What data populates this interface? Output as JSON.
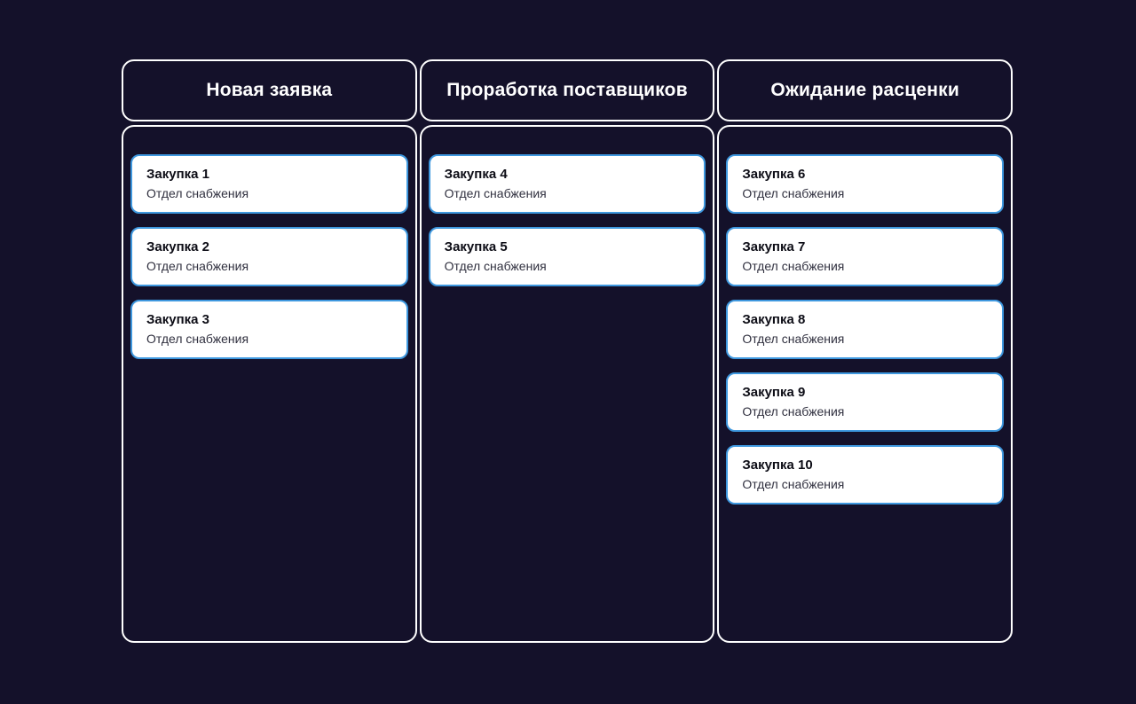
{
  "board": {
    "columns": [
      {
        "title": "Новая заявка",
        "cards": [
          {
            "title": "Закупка 1",
            "subtitle": "Отдел снабжения"
          },
          {
            "title": "Закупка 2",
            "subtitle": "Отдел снабжения"
          },
          {
            "title": "Закупка 3",
            "subtitle": "Отдел снабжения"
          }
        ]
      },
      {
        "title": "Проработка поставщиков",
        "cards": [
          {
            "title": "Закупка 4",
            "subtitle": "Отдел снабжения"
          },
          {
            "title": "Закупка 5",
            "subtitle": "Отдел снабжения"
          }
        ]
      },
      {
        "title": "Ожидание расценки",
        "cards": [
          {
            "title": "Закупка 6",
            "subtitle": "Отдел снабжения"
          },
          {
            "title": "Закупка 7",
            "subtitle": "Отдел снабжения"
          },
          {
            "title": "Закупка 8",
            "subtitle": "Отдел снабжения"
          },
          {
            "title": "Закупка 9",
            "subtitle": "Отдел снабжения"
          },
          {
            "title": "Закупка 10",
            "subtitle": "Отдел снабжения"
          }
        ]
      }
    ]
  },
  "colors": {
    "background": "#14112a",
    "column_border": "#ffffff",
    "header_text": "#ffffff",
    "card_background": "#ffffff",
    "card_border": "#3e98df",
    "card_title": "#0d0d16",
    "card_subtitle": "#30303f"
  }
}
